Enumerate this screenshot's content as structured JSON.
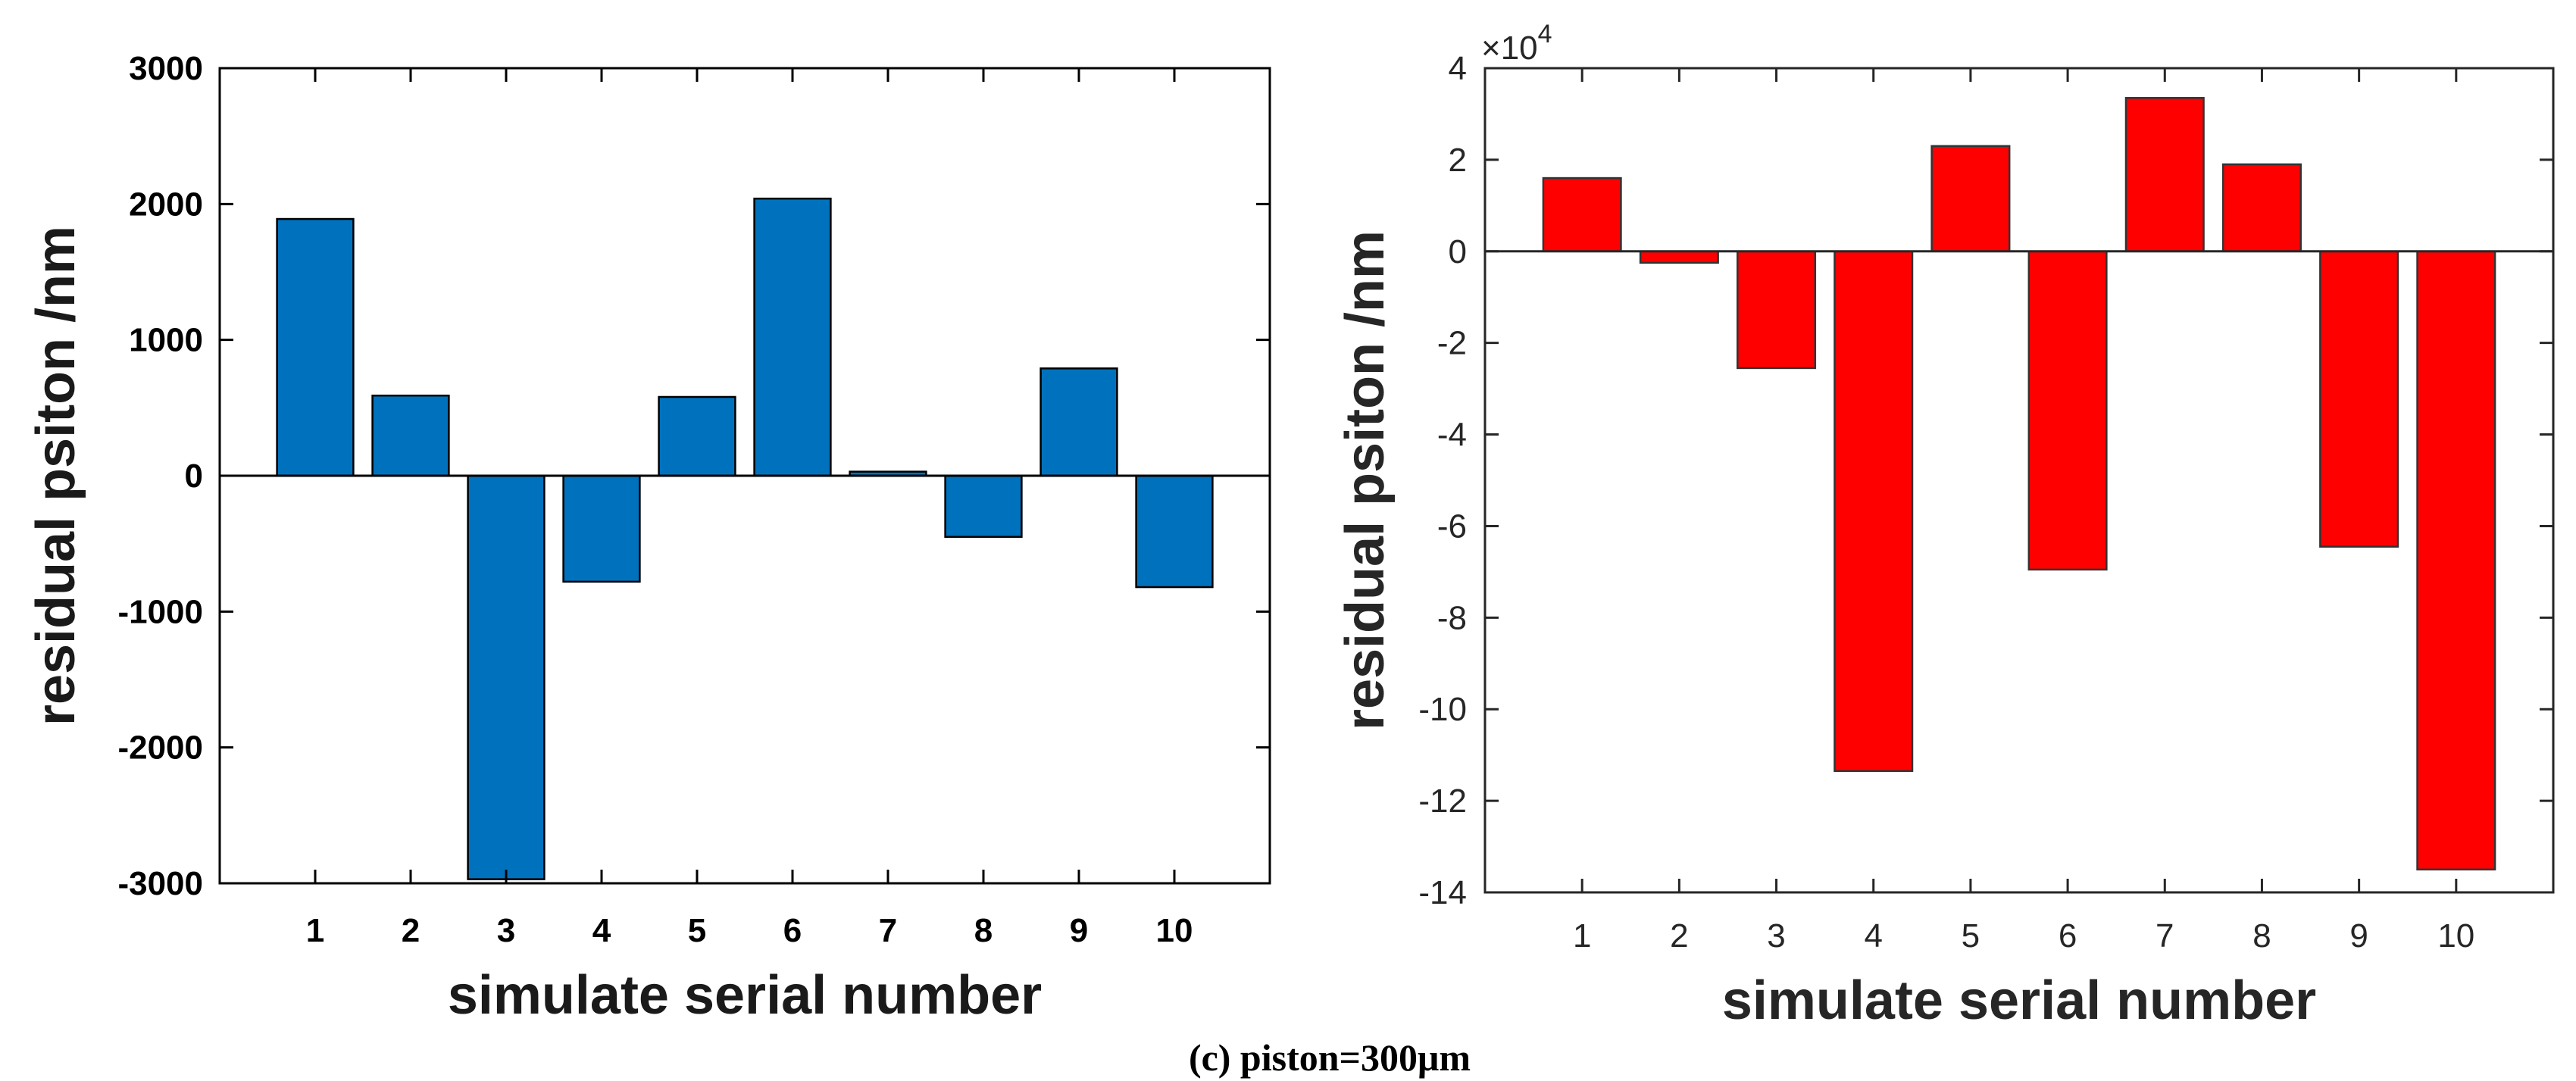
{
  "caption": "(c) piston=300μm",
  "chart_data": [
    {
      "type": "bar",
      "color": "#0072BD",
      "categories": [
        "1",
        "2",
        "3",
        "4",
        "5",
        "6",
        "7",
        "8",
        "9",
        "10"
      ],
      "values": [
        1890,
        590,
        -2970,
        -780,
        580,
        2040,
        30,
        -450,
        790,
        -820
      ],
      "xlabel": "simulate serial number",
      "ylabel": "residual psiton /nm",
      "ylim": [
        -3000,
        3000
      ],
      "yticks": [
        3000,
        2000,
        1000,
        0,
        -1000,
        -2000,
        -3000
      ],
      "ytick_labels": [
        "3000",
        "2000",
        "1000",
        "0",
        "-1000",
        "-2000",
        "-3000"
      ],
      "xlim": [
        0,
        11
      ],
      "grid": false
    },
    {
      "type": "bar",
      "color": "#FF0000",
      "categories": [
        "1",
        "2",
        "3",
        "4",
        "5",
        "6",
        "7",
        "8",
        "9",
        "10"
      ],
      "values": [
        1.6,
        -0.25,
        -2.55,
        -11.35,
        2.3,
        -6.95,
        3.35,
        1.9,
        -6.45,
        -13.5
      ],
      "scale_label": "×10",
      "scale_exponent": "4",
      "xlabel": "simulate serial number",
      "ylabel": "residual psiton /nm",
      "ylim": [
        -14,
        4
      ],
      "yticks": [
        4,
        2,
        0,
        -2,
        -4,
        -6,
        -8,
        -10,
        -12,
        -14
      ],
      "ytick_labels": [
        "4",
        "2",
        "0",
        "-2",
        "-4",
        "-6",
        "-8",
        "-10",
        "-12",
        "-14"
      ],
      "xlim": [
        0,
        11
      ],
      "grid": false
    }
  ]
}
